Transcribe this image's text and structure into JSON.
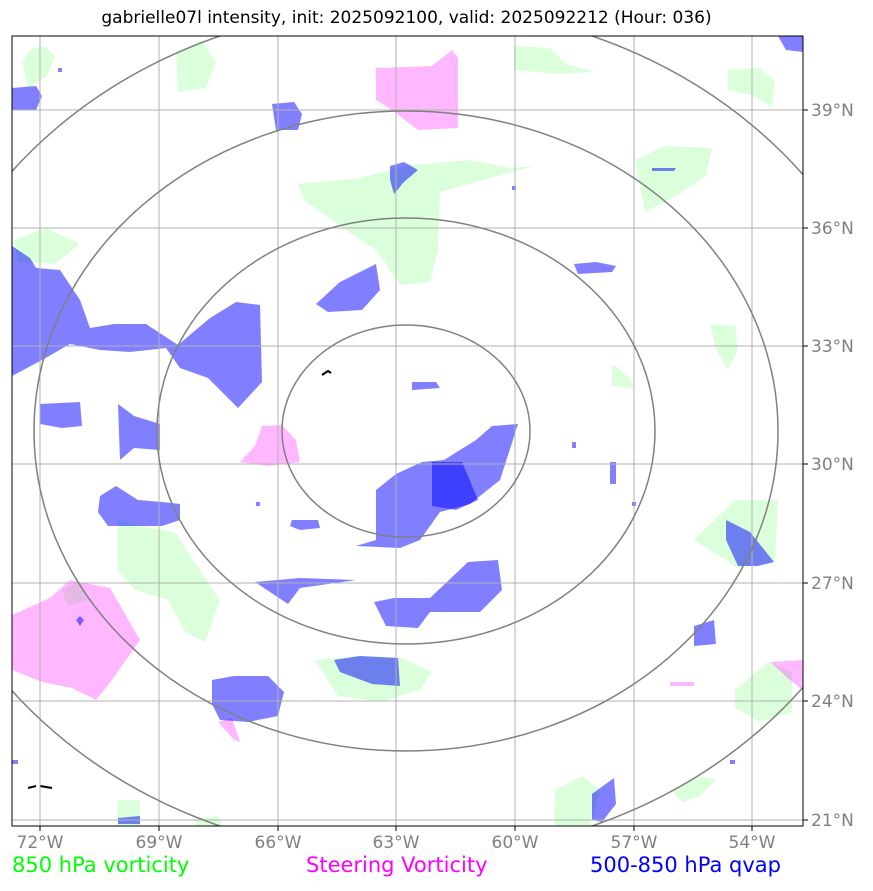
{
  "title": "gabrielle07l intensity, init: 2025092100, valid: 2025092212 (Hour: 036)",
  "lon_ticks": [
    "72°W",
    "69°W",
    "66°W",
    "63°W",
    "60°W",
    "57°W",
    "54°W"
  ],
  "lat_ticks": [
    "39°N",
    "36°N",
    "33°N",
    "30°N",
    "27°N",
    "24°N",
    "21°N"
  ],
  "legend": {
    "vorticity_850": "850 hPa vorticity",
    "steering": "Steering Vorticity",
    "qvap": "500-850 hPa qvap"
  },
  "colors": {
    "vorticity_850": "#00ff00",
    "steering": "#ff00ff",
    "qvap": "#0000ff",
    "grid": "#b0b0b0",
    "range_rings": "#808080"
  }
}
